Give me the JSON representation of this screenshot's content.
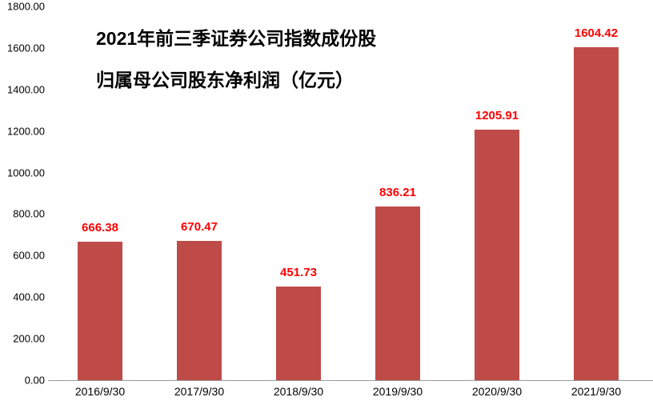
{
  "chart_data": {
    "type": "bar",
    "title_line1": "2021年前三季证券公司指数成份股",
    "title_line2": "归属母公司股东净利润（亿元）",
    "categories": [
      "2016/9/30",
      "2017/9/30",
      "2018/9/30",
      "2019/9/30",
      "2020/9/30",
      "2021/9/30"
    ],
    "values": [
      666.38,
      670.47,
      451.73,
      836.21,
      1205.91,
      1604.42
    ],
    "value_labels": [
      "666.38",
      "670.47",
      "451.73",
      "836.21",
      "1205.91",
      "1604.42"
    ],
    "xlabel": "",
    "ylabel": "",
    "ylim": [
      0,
      1800
    ],
    "ytick_step": 200,
    "ytick_labels": [
      "0.00",
      "200.00",
      "400.00",
      "600.00",
      "800.00",
      "1000.00",
      "1200.00",
      "1400.00",
      "1600.00",
      "1800.00"
    ],
    "grid": false,
    "legend_position": "none",
    "colors": {
      "bar": "#be4b48",
      "value_label": "#ff0000",
      "axis_text": "#000000",
      "axis_line": "#9b9b9b",
      "title": "#000000",
      "background": "#ffffff"
    }
  }
}
